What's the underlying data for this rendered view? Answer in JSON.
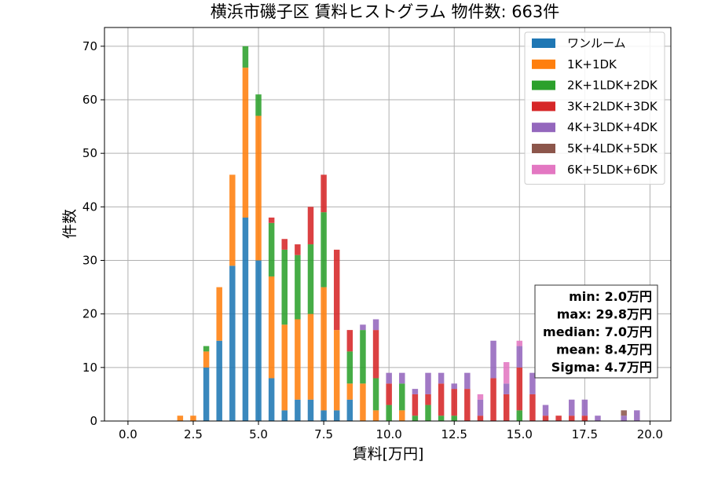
{
  "chart_data": {
    "type": "bar",
    "stacked": true,
    "title": "横浜市磯子区 賃料ヒストグラム 物件数: 663件",
    "xlabel": "賃料[万円]",
    "ylabel": "件数",
    "xlim": [
      -0.9,
      20.8
    ],
    "ylim": [
      0,
      73.5
    ],
    "xticks": [
      "0.0",
      "2.5",
      "5.0",
      "7.5",
      "10.0",
      "12.5",
      "15.0",
      "17.5",
      "20.0"
    ],
    "xtick_values": [
      0,
      2.5,
      5,
      7.5,
      10,
      12.5,
      15,
      17.5,
      20
    ],
    "yticks": [
      "0",
      "10",
      "20",
      "30",
      "40",
      "50",
      "60",
      "70"
    ],
    "ytick_values": [
      0,
      10,
      20,
      30,
      40,
      50,
      60,
      70
    ],
    "grid": true,
    "legend_position": "top-right",
    "bin_centers": [
      2.0,
      2.25,
      2.5,
      2.75,
      3.0,
      3.25,
      3.5,
      3.75,
      4.0,
      4.25,
      4.5,
      4.75,
      5.0,
      5.25,
      5.5,
      5.75,
      6.0,
      6.25,
      6.5,
      6.75,
      7.0,
      7.25,
      7.5,
      7.75,
      8.0,
      8.25,
      8.5,
      8.75,
      9.0,
      9.25,
      9.5,
      9.75,
      10.0,
      10.25,
      10.5,
      10.75,
      11.0,
      11.25,
      11.5,
      11.75,
      12.0,
      12.25,
      12.5,
      12.75,
      13.0,
      13.25,
      13.5,
      13.75,
      14.0,
      14.25,
      14.5,
      14.75,
      15.0,
      15.25,
      15.5,
      15.75,
      16.0,
      16.25,
      16.5,
      16.75,
      17.0,
      17.25,
      17.5,
      17.75,
      18.0,
      18.25,
      18.5,
      18.75,
      19.0,
      19.25,
      19.5,
      19.75
    ],
    "series": [
      {
        "name": "ワンルーム",
        "color": "#1f77b4",
        "values": [
          0,
          0,
          0,
          0,
          10,
          0,
          15,
          0,
          29,
          0,
          38,
          0,
          30,
          0,
          8,
          0,
          2,
          0,
          4,
          0,
          4,
          0,
          2,
          0,
          2,
          0,
          4,
          0,
          0,
          0,
          0,
          0,
          0,
          0,
          0,
          0,
          0,
          0,
          0,
          0,
          0,
          0,
          0,
          0,
          0,
          0,
          0,
          0,
          0,
          0,
          0,
          0,
          0,
          0,
          0,
          0,
          0,
          0,
          0,
          0,
          0,
          0,
          0,
          0,
          0,
          0,
          0,
          0,
          0,
          0,
          0,
          0
        ]
      },
      {
        "name": "1K+1DK",
        "color": "#ff7f0e",
        "values": [
          1,
          0,
          1,
          0,
          3,
          0,
          10,
          0,
          17,
          0,
          28,
          0,
          27,
          0,
          19,
          0,
          16,
          0,
          15,
          0,
          16,
          0,
          23,
          0,
          15,
          0,
          3,
          0,
          7,
          0,
          2,
          0,
          0,
          0,
          2,
          0,
          0,
          0,
          0,
          0,
          0,
          0,
          0,
          0,
          0,
          0,
          0,
          0,
          0,
          0,
          0,
          0,
          0,
          0,
          0,
          0,
          0,
          0,
          0,
          0,
          0,
          0,
          0,
          0,
          0,
          0,
          0,
          0,
          0,
          0,
          0,
          0,
          0
        ]
      },
      {
        "name": "2K+1LDK+2DK",
        "color": "#2ca02c",
        "values": [
          0,
          0,
          0,
          0,
          1,
          0,
          0,
          0,
          0,
          0,
          4,
          0,
          4,
          0,
          10,
          0,
          14,
          0,
          12,
          0,
          13,
          0,
          14,
          0,
          0,
          0,
          6,
          0,
          10,
          0,
          6,
          0,
          3,
          0,
          5,
          0,
          1,
          0,
          3,
          0,
          1,
          0,
          1,
          0,
          0,
          0,
          0,
          0,
          0,
          0,
          0,
          0,
          2,
          0,
          0,
          0,
          0,
          0,
          0,
          0,
          0,
          0,
          0,
          0,
          0,
          0,
          0,
          0,
          0,
          0,
          0,
          0
        ]
      },
      {
        "name": "3K+2LDK+3DK",
        "color": "#d62728",
        "values": [
          0,
          0,
          0,
          0,
          0,
          0,
          0,
          0,
          0,
          0,
          0,
          0,
          0,
          0,
          1,
          0,
          2,
          0,
          2,
          0,
          7,
          0,
          7,
          0,
          15,
          0,
          4,
          0,
          0,
          0,
          9,
          0,
          4,
          0,
          0,
          0,
          4,
          0,
          2,
          0,
          6,
          0,
          5,
          0,
          6,
          0,
          1,
          0,
          8,
          0,
          5,
          0,
          8,
          0,
          5,
          0,
          1,
          0,
          1,
          0,
          1,
          0,
          1,
          0,
          0,
          0,
          0,
          0,
          0,
          0,
          0,
          0
        ]
      },
      {
        "name": "4K+3LDK+4DK",
        "color": "#9467bd",
        "values": [
          0,
          0,
          0,
          0,
          0,
          0,
          0,
          0,
          0,
          0,
          0,
          0,
          0,
          0,
          0,
          0,
          0,
          0,
          0,
          0,
          0,
          0,
          0,
          0,
          0,
          0,
          0,
          0,
          1,
          0,
          2,
          0,
          2,
          0,
          2,
          0,
          1,
          0,
          4,
          0,
          2,
          0,
          1,
          0,
          3,
          0,
          3,
          0,
          7,
          0,
          2,
          0,
          4,
          0,
          4,
          0,
          2,
          0,
          0,
          0,
          3,
          0,
          3,
          0,
          1,
          0,
          0,
          0,
          1,
          0,
          2,
          0
        ]
      },
      {
        "name": "5K+4LDK+5DK",
        "color": "#8c564b",
        "values": [
          0,
          0,
          0,
          0,
          0,
          0,
          0,
          0,
          0,
          0,
          0,
          0,
          0,
          0,
          0,
          0,
          0,
          0,
          0,
          0,
          0,
          0,
          0,
          0,
          0,
          0,
          0,
          0,
          0,
          0,
          0,
          0,
          0,
          0,
          0,
          0,
          0,
          0,
          0,
          0,
          0,
          0,
          0,
          0,
          0,
          0,
          0,
          0,
          0,
          0,
          0,
          0,
          0,
          0,
          0,
          0,
          0,
          0,
          0,
          0,
          0,
          0,
          0,
          0,
          0,
          0,
          0,
          0,
          1,
          0,
          0,
          0
        ]
      },
      {
        "name": "6K+5LDK+6DK",
        "color": "#e377c2",
        "values": [
          0,
          0,
          0,
          0,
          0,
          0,
          0,
          0,
          0,
          0,
          0,
          0,
          0,
          0,
          0,
          0,
          0,
          0,
          0,
          0,
          0,
          0,
          0,
          0,
          0,
          0,
          0,
          0,
          0,
          0,
          0,
          0,
          0,
          0,
          0,
          0,
          0,
          0,
          0,
          0,
          0,
          0,
          0,
          0,
          0,
          0,
          1,
          0,
          0,
          0,
          4,
          0,
          1,
          0,
          0,
          0,
          0,
          0,
          0,
          0,
          0,
          0,
          0,
          0,
          0,
          0,
          0,
          0,
          0,
          0,
          0,
          0
        ]
      }
    ],
    "stats_box": {
      "position": "bottom-right",
      "lines": [
        "min: 2.0万円",
        "max: 29.8万円",
        "median: 7.0万円",
        "mean: 8.4万円",
        "Sigma: 4.7万円"
      ]
    }
  }
}
